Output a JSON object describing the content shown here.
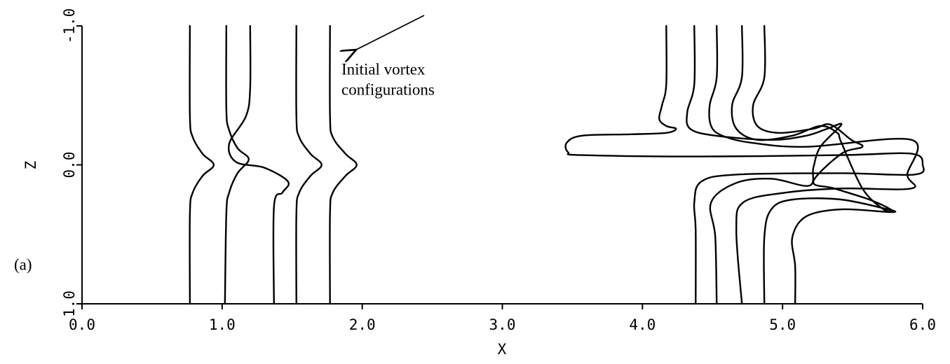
{
  "chart_data": {
    "type": "line",
    "panel_label": "(a)",
    "xlabel": "X",
    "ylabel": "Z",
    "annotations": [
      {
        "text": "Initial vortex"
      },
      {
        "text": "configurations"
      }
    ],
    "xlim": [
      0,
      6
    ],
    "ylim": [
      -1,
      1
    ],
    "y_inverted": true,
    "color": "#000000",
    "xticks": [
      {
        "value": 0,
        "label": "0.0"
      },
      {
        "value": 1,
        "label": "1.0"
      },
      {
        "value": 2,
        "label": "2.0"
      },
      {
        "value": 3,
        "label": "3.0"
      },
      {
        "value": 4,
        "label": "4.0"
      },
      {
        "value": 5,
        "label": "5.0"
      },
      {
        "value": 6,
        "label": "6.0"
      }
    ],
    "yticks": [
      {
        "value": -1,
        "label": "-1.0"
      },
      {
        "value": 0,
        "label": "0.0"
      },
      {
        "value": 1,
        "label": "1.0"
      }
    ],
    "series": [
      {
        "x": [
          0.77,
          0.77,
          0.79,
          0.86,
          0.94,
          0.86,
          0.79,
          0.77,
          0.77
        ],
        "values": [
          -1,
          -0.35,
          -0.2,
          -0.08,
          0,
          0.08,
          0.2,
          0.35,
          1
        ]
      },
      {
        "x": [
          1.03,
          1.03,
          1.05,
          1.11,
          1.19,
          1.11,
          1.05,
          1.03,
          1.02
        ],
        "values": [
          -1,
          -0.4,
          -0.25,
          -0.12,
          -0.04,
          0.06,
          0.2,
          0.35,
          1
        ]
      },
      {
        "x": [
          1.2,
          1.2,
          1.17,
          1.05,
          1.1,
          1.3,
          1.47,
          1.43,
          1.37,
          1.37
        ],
        "values": [
          -1,
          -0.55,
          -0.35,
          -0.15,
          -0.02,
          0.02,
          0.12,
          0.2,
          0.3,
          1
        ]
      },
      {
        "x": [
          1.53,
          1.53,
          1.55,
          1.63,
          1.71,
          1.63,
          1.55,
          1.53,
          1.53
        ],
        "values": [
          -1,
          -0.35,
          -0.2,
          -0.08,
          0,
          0.08,
          0.2,
          0.35,
          1
        ]
      },
      {
        "x": [
          1.77,
          1.77,
          1.79,
          1.88,
          1.96,
          1.88,
          1.79,
          1.77,
          1.77
        ],
        "values": [
          -1,
          -0.35,
          -0.2,
          -0.08,
          0,
          0.08,
          0.2,
          0.35,
          1
        ]
      },
      {
        "x": [
          4.17,
          4.17,
          4.14,
          4.12,
          4.17,
          4.24,
          4.17,
          3.92,
          3.57,
          3.46,
          3.47,
          3.57,
          4.42,
          5.42,
          5.92,
          6.0,
          5.94,
          5.42,
          4.67,
          4.42,
          4.37,
          4.38,
          4.38
        ],
        "values": [
          -1,
          -0.58,
          -0.43,
          -0.33,
          -0.28,
          -0.26,
          -0.23,
          -0.22,
          -0.21,
          -0.16,
          -0.09,
          -0.07,
          -0.06,
          -0.07,
          -0.08,
          0,
          0.07,
          0.06,
          0.07,
          0.12,
          0.27,
          0.47,
          1
        ]
      },
      {
        "x": [
          4.37,
          4.37,
          4.32,
          4.34,
          4.52,
          4.92,
          5.17,
          5.32,
          5.42,
          5.27,
          5.22,
          5.19,
          4.92,
          4.67,
          4.49,
          4.52,
          4.53
        ],
        "values": [
          -1,
          -0.58,
          -0.38,
          -0.26,
          -0.21,
          -0.18,
          -0.21,
          -0.26,
          -0.29,
          -0.13,
          0.02,
          0.15,
          0.1,
          0.13,
          0.27,
          0.52,
          1
        ]
      },
      {
        "x": [
          4.53,
          4.53,
          4.48,
          4.49,
          4.57,
          4.77,
          5.17,
          5.92,
          5.89,
          5.92,
          5.42,
          5.02,
          4.72,
          4.67,
          4.71
        ],
        "values": [
          -1,
          -0.63,
          -0.43,
          -0.28,
          -0.21,
          -0.16,
          -0.13,
          -0.18,
          0.07,
          0.17,
          0.17,
          0.2,
          0.27,
          0.47,
          1
        ]
      },
      {
        "x": [
          4.71,
          4.71,
          4.64,
          4.67,
          4.82,
          5.07,
          5.27,
          5.39,
          5.42,
          5.57,
          5.72,
          5.79,
          5.42,
          5.07,
          4.92,
          4.87,
          4.87
        ],
        "values": [
          -1,
          -0.63,
          -0.43,
          -0.26,
          -0.18,
          -0.21,
          -0.28,
          -0.23,
          -0.16,
          0.17,
          0.32,
          0.33,
          0.25,
          0.25,
          0.32,
          0.52,
          1
        ]
      },
      {
        "x": [
          4.87,
          4.87,
          4.79,
          4.82,
          4.97,
          5.22,
          5.34,
          5.49,
          5.57,
          5.42,
          5.22,
          5.37,
          5.62,
          5.77,
          5.77,
          5.42,
          5.17,
          5.07,
          5.09,
          5.09
        ],
        "values": [
          -1,
          -0.63,
          -0.43,
          -0.28,
          -0.23,
          -0.26,
          -0.29,
          -0.18,
          -0.13,
          -0.08,
          0.12,
          0.17,
          0.25,
          0.32,
          0.34,
          0.32,
          0.37,
          0.52,
          0.73,
          1
        ]
      }
    ]
  }
}
